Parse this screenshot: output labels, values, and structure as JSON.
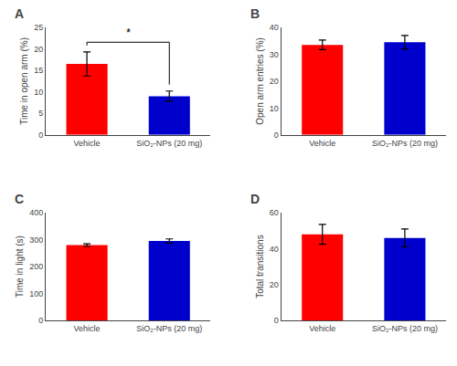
{
  "chart_data": [
    {
      "type": "bar",
      "title": "A",
      "ylabel": "Time in open arm (%)",
      "categories": [
        "Vehicle",
        "SiO₂-NPs (20 mg)"
      ],
      "values": [
        16.5,
        9.0
      ],
      "errors": [
        2.8,
        1.2
      ],
      "colors": [
        "#FF0000",
        "#0000CC"
      ],
      "ylim": [
        0,
        25
      ],
      "yticks": [
        0,
        5,
        10,
        15,
        20,
        25
      ],
      "grid": false,
      "annotations": [
        "*"
      ]
    },
    {
      "type": "bar",
      "title": "B",
      "ylabel": "Open arm entries (%)",
      "categories": [
        "Vehicle",
        "SiO₂-NPs (20 mg)"
      ],
      "values": [
        33.5,
        34.5
      ],
      "errors": [
        1.8,
        2.5
      ],
      "colors": [
        "#FF0000",
        "#0000CC"
      ],
      "ylim": [
        0,
        40
      ],
      "yticks": [
        0,
        10,
        20,
        30,
        40
      ],
      "grid": false
    },
    {
      "type": "bar",
      "title": "C",
      "ylabel": "Time in light (s)",
      "categories": [
        "Vehicle",
        "SiO₂-NPs (20 mg)"
      ],
      "values": [
        280,
        295
      ],
      "errors": [
        5,
        8
      ],
      "colors": [
        "#FF0000",
        "#0000CC"
      ],
      "ylim": [
        0,
        400
      ],
      "yticks": [
        0,
        100,
        200,
        300,
        400
      ],
      "grid": false
    },
    {
      "type": "bar",
      "title": "D",
      "ylabel": "Total transitions",
      "categories": [
        "Vehicle",
        "SiO₂-NPs (20 mg)"
      ],
      "values": [
        48,
        46
      ],
      "errors": [
        5.5,
        5.0
      ],
      "colors": [
        "#FF0000",
        "#0000CC"
      ],
      "ylim": [
        0,
        60
      ],
      "yticks": [
        0,
        20,
        40,
        60
      ],
      "grid": false
    }
  ]
}
